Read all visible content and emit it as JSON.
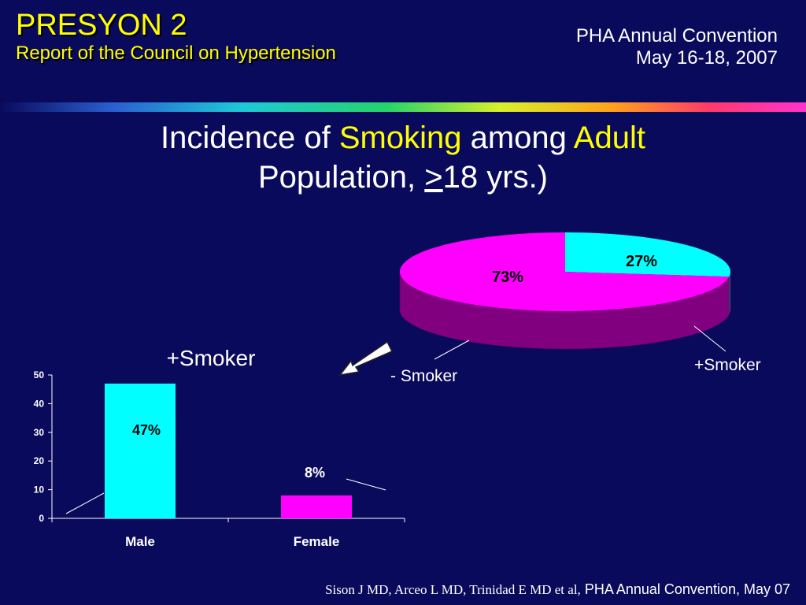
{
  "header": {
    "title": "PRESYON 2",
    "subtitle": "Report of the Council on Hypertension",
    "conference_line1": "PHA Annual Convention",
    "conference_line2": "May 16-18, 2007"
  },
  "slide_title": {
    "part1": "Incidence of ",
    "part2": "Smoking",
    "part3": " among ",
    "part4": "Adult",
    "part5": "Population, ",
    "part6": ">",
    "part7": "18 yrs.)"
  },
  "footer": {
    "authors": "Sison J MD, Arceo L MD, Trinidad E MD et al,",
    "event": "PHA Annual Convention, May 07"
  },
  "colors": {
    "background": "#0a0a5c",
    "accent_yellow": "#ffff00",
    "cyan": "#00ffff",
    "magenta": "#ff00ff",
    "pie_side_magenta": "#800080",
    "pie_side_cyan": "#008080"
  },
  "chart_data": [
    {
      "type": "pie",
      "slices": [
        {
          "label": "+Smoker",
          "value": 27,
          "value_label": "27%",
          "color": "#00ffff"
        },
        {
          "label": "- Smoker",
          "value": 73,
          "value_label": "73%",
          "color": "#ff00ff"
        }
      ]
    },
    {
      "type": "bar",
      "title": "+Smoker",
      "categories": [
        "Male",
        "Female"
      ],
      "values": [
        47,
        8
      ],
      "value_labels": [
        "47%",
        "8%"
      ],
      "colors": [
        "#00ffff",
        "#ff00ff"
      ],
      "ylim": [
        0,
        50
      ],
      "yticks": [
        0,
        10,
        20,
        30,
        40,
        50
      ],
      "grid": false
    }
  ]
}
